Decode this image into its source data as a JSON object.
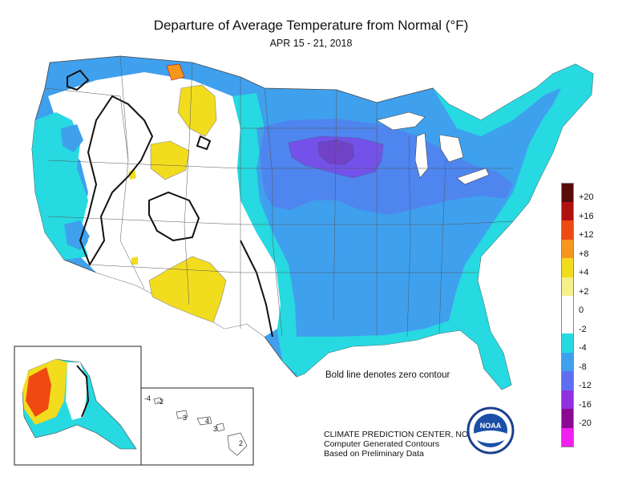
{
  "title": "Departure of Average Temperature from Normal (°F)",
  "subtitle": "APR 15 - 21, 2018",
  "note": "Bold line denotes zero contour",
  "credit": {
    "line1": "CLIMATE PREDICTION CENTER, NOAA",
    "line2": "Computer Generated Contours",
    "line3": "Based on Preliminary Data"
  },
  "logo_text": "NOAA",
  "legend": [
    {
      "label": "+20",
      "color": "#5a0a0a"
    },
    {
      "label": "+16",
      "color": "#b01010"
    },
    {
      "label": "+12",
      "color": "#ee4a12"
    },
    {
      "label": "+8",
      "color": "#f7961c"
    },
    {
      "label": "+4",
      "color": "#f2dc1e"
    },
    {
      "label": "+2",
      "color": "#f5f08a"
    },
    {
      "label": "0",
      "color": "#ffffff"
    },
    {
      "label": "-2",
      "color": "#ffffff"
    },
    {
      "label": "-4",
      "color": "#27d9e0"
    },
    {
      "label": "-8",
      "color": "#3fa0ee"
    },
    {
      "label": "-12",
      "color": "#5d6ff0"
    },
    {
      "label": "-16",
      "color": "#9030e0"
    },
    {
      "label": "-20",
      "color": "#8a0a92"
    },
    {
      "label": "",
      "color": "#f020f0"
    }
  ],
  "hawaii_labels": [
    "-4",
    "-2",
    "3",
    "4",
    "3",
    "2"
  ]
}
